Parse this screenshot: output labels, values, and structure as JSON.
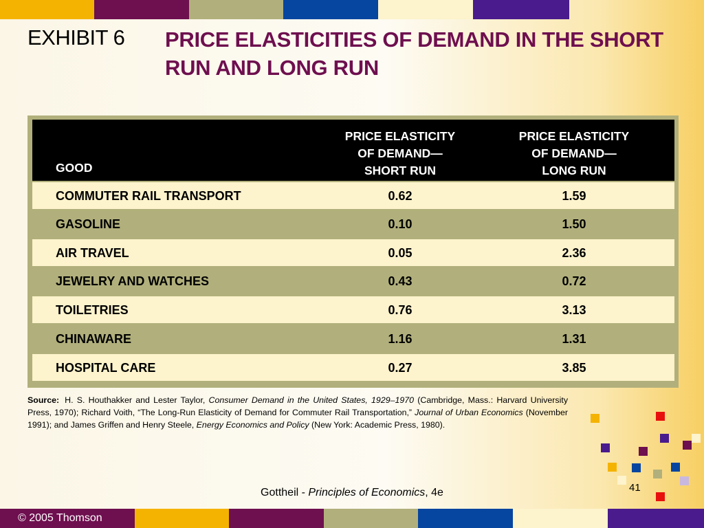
{
  "header_bar_colors": [
    "#f5b301",
    "#6e0f4f",
    "#b1b07c",
    "#0645a0",
    "#fdf3cc",
    "#4a1b8c"
  ],
  "footer_bar_colors": [
    "#f5b301",
    "#6e0f4f",
    "#b1b07c",
    "#0645a0",
    "#fdf3cc",
    "#4a1b8c"
  ],
  "title": {
    "label": "EXHIBIT 6",
    "main": "PRICE ELASTICITIES OF DEMAND IN THE SHORT RUN AND LONG RUN"
  },
  "table": {
    "headers": {
      "good": "GOOD",
      "short": "PRICE ELASTICITY\nOF DEMAND—\nSHORT RUN",
      "long": "PRICE ELASTICITY\nOF DEMAND—\nLONG RUN"
    },
    "rows": [
      {
        "good": "COMMUTER RAIL TRANSPORT",
        "short": "0.62",
        "long": "1.59"
      },
      {
        "good": "GASOLINE",
        "short": "0.10",
        "long": "1.50"
      },
      {
        "good": "AIR TRAVEL",
        "short": "0.05",
        "long": "2.36"
      },
      {
        "good": "JEWELRY AND WATCHES",
        "short": "0.43",
        "long": "0.72"
      },
      {
        "good": "TOILETRIES",
        "short": "0.76",
        "long": "3.13"
      },
      {
        "good": "CHINAWARE",
        "short": "1.16",
        "long": "1.31"
      },
      {
        "good": "HOSPITAL CARE",
        "short": "0.27",
        "long": "3.85"
      }
    ]
  },
  "source": {
    "label": "Source:",
    "t1": "H. S. Houthakker and Lester Taylor, ",
    "i1": "Consumer Demand in the United States, 1929–1970",
    "t2": " (Cambridge, Mass.: Harvard University Press, 1970); Richard Voith, “The Long-Run Elasticity of Demand for Commuter Rail Transportation,” ",
    "i2": "Journal of Urban Economics",
    "t3": " (November 1991); and James Griffen and Henry Steele, ",
    "i3": "Energy Economics and Policy",
    "t4": " (New York: Academic Press, 1980)."
  },
  "footer": {
    "author": "Gottheil - ",
    "book": "Principles of Economics",
    "edition": ", 4e",
    "page": "41",
    "copyright": "© 2005 Thomson"
  },
  "decor_square_colors": [
    "#f5b301",
    "#e8100d",
    "#4a1b8c",
    "#fdf3cc",
    "#6e0f4f",
    "#0645a0",
    "#b1b07c",
    "#c8b8e0"
  ]
}
